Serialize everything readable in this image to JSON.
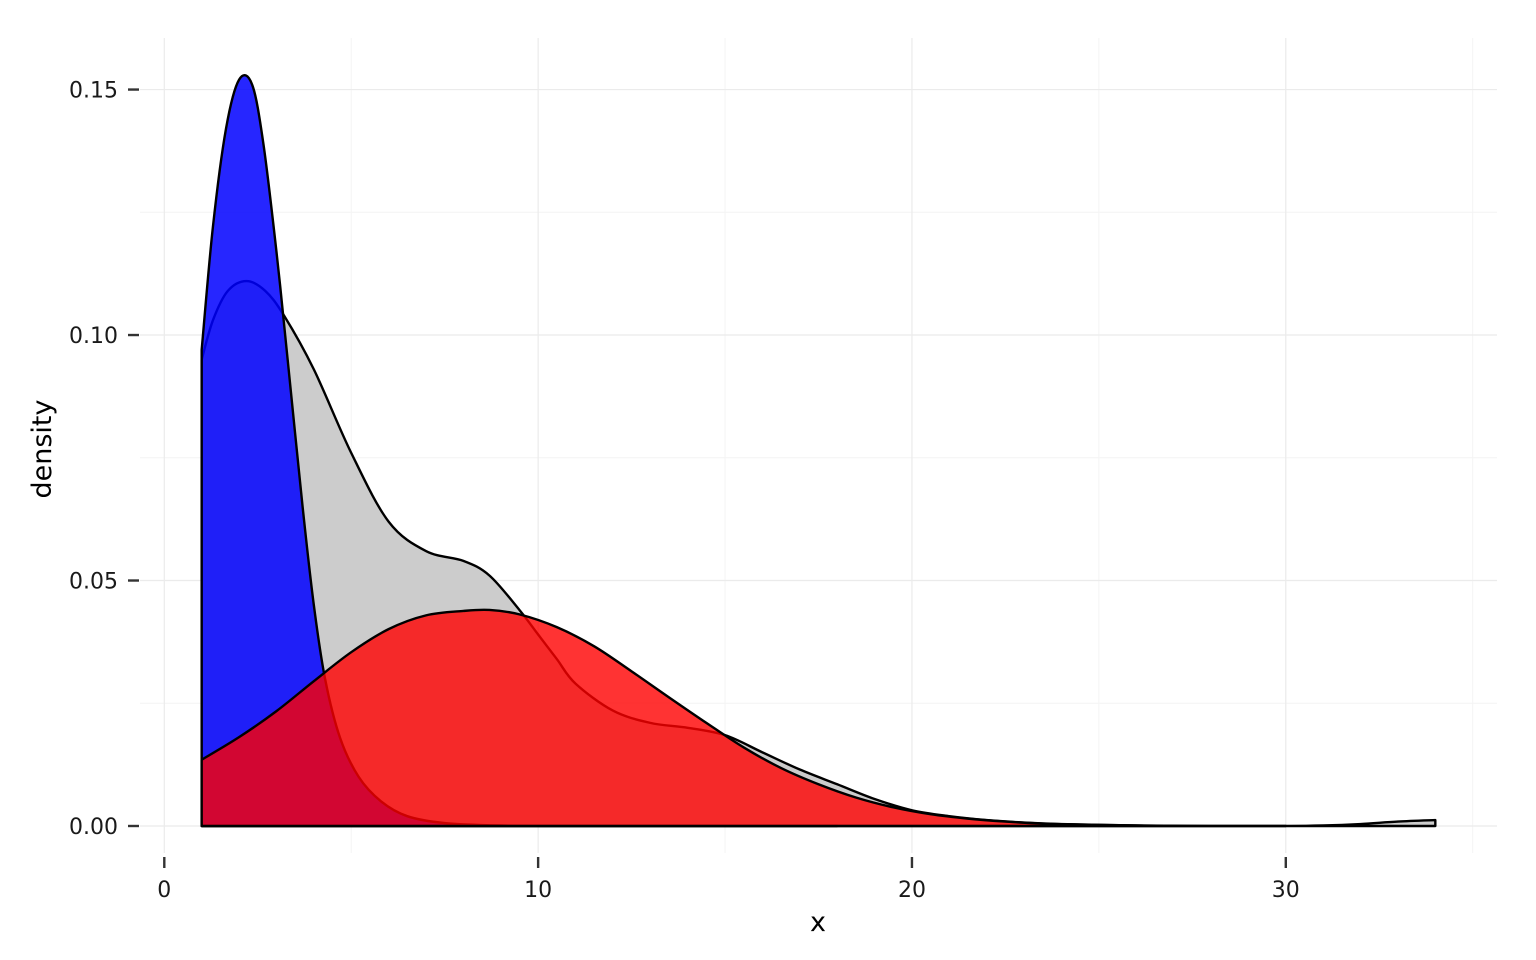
{
  "chart_data": {
    "type": "area",
    "title": "",
    "xlabel": "x",
    "ylabel": "density",
    "xlim": [
      -0.65,
      35.65
    ],
    "ylim": [
      -0.0055,
      0.1605
    ],
    "x_ticks": [
      0,
      10,
      20,
      30
    ],
    "x_tick_labels": [
      "0",
      "10",
      "20",
      "30"
    ],
    "x_minor_ticks": [
      5,
      15,
      25,
      35
    ],
    "y_ticks": [
      0,
      0.05,
      0.1,
      0.15
    ],
    "y_tick_labels": [
      "0.00",
      "0.05",
      "0.10",
      "0.15"
    ],
    "y_minor_ticks": [
      0.025,
      0.075,
      0.125
    ],
    "grid": true,
    "legend": "none",
    "series": [
      {
        "color": "#cccccc",
        "opacity": 1,
        "x": [
          1,
          1.3,
          1.7,
          2.2,
          2.7,
          3.2,
          4,
          5,
          6,
          7,
          8,
          8.7,
          9.5,
          10,
          10.5,
          11,
          12,
          13,
          14,
          15,
          16,
          17,
          18,
          19,
          20,
          21,
          22,
          23,
          24,
          26,
          28,
          30,
          31,
          32,
          33,
          34
        ],
        "y": [
          0.095,
          0.103,
          0.109,
          0.111,
          0.109,
          0.104,
          0.093,
          0.076,
          0.062,
          0.056,
          0.054,
          0.051,
          0.044,
          0.039,
          0.034,
          0.029,
          0.0235,
          0.021,
          0.02,
          0.0185,
          0.015,
          0.0115,
          0.0085,
          0.0055,
          0.0032,
          0.002,
          0.0012,
          0.0007,
          0.0004,
          0.0001,
          0,
          0,
          0.0001,
          0.0004,
          0.0009,
          0.0012
        ]
      },
      {
        "color": "#0000ff",
        "opacity": 0.85,
        "x": [
          1,
          1.3,
          1.65,
          2.0,
          2.35,
          2.65,
          3.0,
          3.3,
          3.7,
          4.0,
          4.3,
          4.7,
          5.2,
          5.8,
          6.5,
          7.5,
          9,
          11,
          14,
          18
        ],
        "y": [
          0.097,
          0.122,
          0.142,
          0.152,
          0.151,
          0.139,
          0.117,
          0.095,
          0.065,
          0.045,
          0.03,
          0.018,
          0.01,
          0.005,
          0.002,
          0.0006,
          0.0001,
          0,
          0,
          0
        ]
      },
      {
        "color": "#ff0000",
        "opacity": 0.8,
        "x": [
          1,
          2,
          3,
          4,
          5,
          6,
          7,
          8,
          8.7,
          9.5,
          10.5,
          11.5,
          12.5,
          13.5,
          14.5,
          15.5,
          16.5,
          17.5,
          18.5,
          19.5,
          20.5,
          21.5,
          22.5,
          23.5,
          24.5,
          26,
          28,
          30
        ],
        "y": [
          0.0135,
          0.0181,
          0.0234,
          0.0295,
          0.0354,
          0.0401,
          0.0429,
          0.0438,
          0.044,
          0.0431,
          0.0405,
          0.0366,
          0.0315,
          0.0262,
          0.021,
          0.016,
          0.0118,
          0.0085,
          0.0058,
          0.0038,
          0.0024,
          0.0015,
          0.0009,
          0.0005,
          0.0003,
          0.0001,
          0,
          0
        ]
      }
    ]
  }
}
